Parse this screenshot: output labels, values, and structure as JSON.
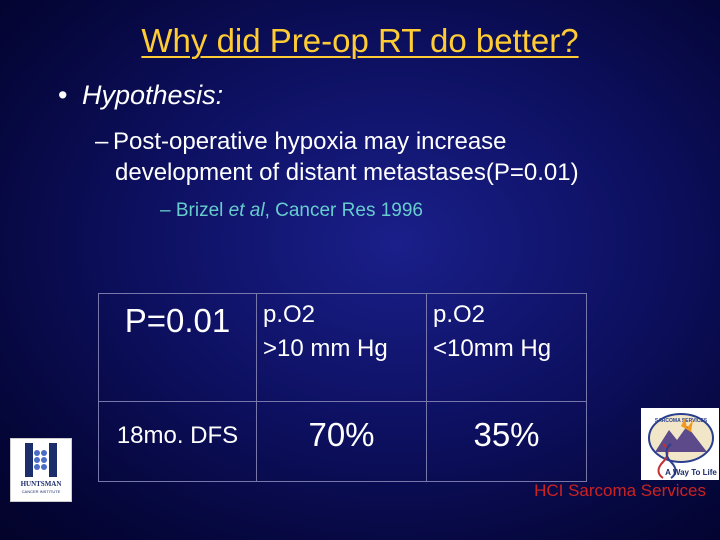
{
  "slide": {
    "title": "Why did Pre-op RT do better?",
    "bullet_marker": "•",
    "bullet1": "Hypothesis:",
    "sub_dash": "–",
    "sub1_line1": "Post-operative hypoxia may increase",
    "sub1_line2": "development of distant metastases(P=0.01)",
    "citation_dash": "–",
    "citation_author": "Brizel",
    "citation_etal": "et al",
    "citation_rest": ", Cancer Res 1996"
  },
  "table": {
    "p_value": "P=0.01",
    "col1_line1": "p.O2",
    "col1_line2": ">10 mm Hg",
    "col2_line1": "p.O2",
    "col2_line2": "<10mm Hg",
    "row_label": "18mo. DFS",
    "val1": "70%",
    "val2": "35%"
  },
  "logos": {
    "left_top": "HUNTSMAN",
    "left_bottom": "CANCER INSTITUTE",
    "right_top": "SARCOMA SERVICES",
    "right_bottom": "A Way To Life"
  },
  "footer": "HCI  Sarcoma Services",
  "colors": {
    "title": "#ffcc33",
    "citation": "#66cccc",
    "footer": "#cc2222"
  }
}
